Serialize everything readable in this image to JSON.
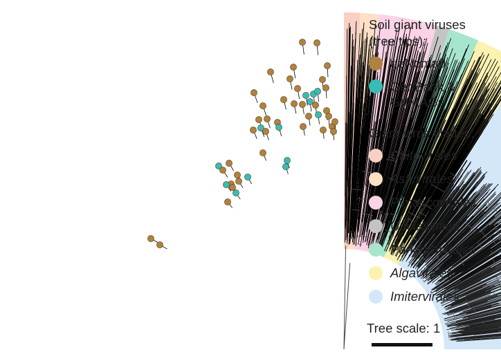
{
  "legend": {
    "tips_title_line1": "Soil giant viruses",
    "tips_title_line2": "(tree tips):",
    "tips": [
      {
        "label": "geNomad",
        "color": "#b0823f"
      },
      {
        "label_line1": "GenBank &",
        "label_line2": "GVMAGs",
        "color": "#37bdb7"
      }
    ],
    "clades_title": "Giant virus clades:",
    "clades": [
      {
        "label": "Chitovirales",
        "color": "#f9d0c4",
        "italic": true
      },
      {
        "label": "Asfuvirales",
        "color": "#fde0c6",
        "italic": true
      },
      {
        "label": "Pimascovirales",
        "color": "#fbd3e6",
        "italic": true
      },
      {
        "label": "Unclassified",
        "color": "#c4c4c4",
        "italic": false
      },
      {
        "label": "Pandoravirales",
        "color": "#a7e6cc",
        "italic": true
      },
      {
        "label": "Algavirales",
        "color": "#fbf2b1",
        "italic": true
      },
      {
        "label": "Imitervirales",
        "color": "#d4e7f9",
        "italic": true
      }
    ]
  },
  "tree_scale": {
    "label": "Tree scale: 1",
    "value": 1
  }
}
